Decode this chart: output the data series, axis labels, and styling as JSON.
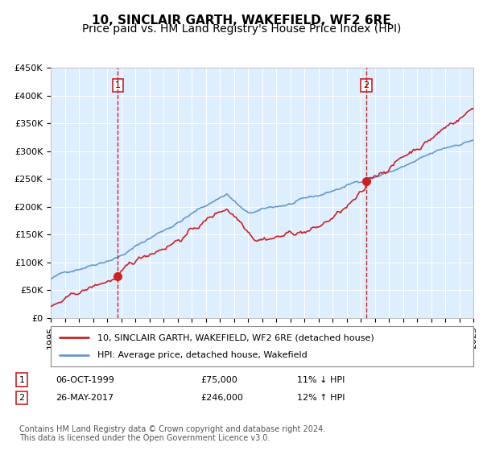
{
  "title": "10, SINCLAIR GARTH, WAKEFIELD, WF2 6RE",
  "subtitle": "Price paid vs. HM Land Registry's House Price Index (HPI)",
  "ylim": [
    0,
    450000
  ],
  "yticks": [
    0,
    50000,
    100000,
    150000,
    200000,
    250000,
    300000,
    350000,
    400000,
    450000
  ],
  "ytick_labels": [
    "£0",
    "£50K",
    "£100K",
    "£150K",
    "£200K",
    "£250K",
    "£300K",
    "£350K",
    "£400K",
    "£450K"
  ],
  "hpi_color": "#6699cc",
  "price_color": "#cc2222",
  "marker_color": "#cc2222",
  "vline_color": "#cc2222",
  "bg_color": "#ddeeff",
  "grid_color": "#ffffff",
  "sale1_year": 1999.77,
  "sale1_price": 75000,
  "sale2_year": 2017.4,
  "sale2_price": 246000,
  "legend_label1": "10, SINCLAIR GARTH, WAKEFIELD, WF2 6RE (detached house)",
  "legend_label2": "HPI: Average price, detached house, Wakefield",
  "table_row1": [
    "1",
    "06-OCT-1999",
    "£75,000",
    "11% ↓ HPI"
  ],
  "table_row2": [
    "2",
    "26-MAY-2017",
    "£246,000",
    "12% ↑ HPI"
  ],
  "footer": "Contains HM Land Registry data © Crown copyright and database right 2024.\nThis data is licensed under the Open Government Licence v3.0.",
  "title_fontsize": 11,
  "subtitle_fontsize": 10,
  "tick_fontsize": 8,
  "legend_fontsize": 8,
  "table_fontsize": 8,
  "footer_fontsize": 7
}
